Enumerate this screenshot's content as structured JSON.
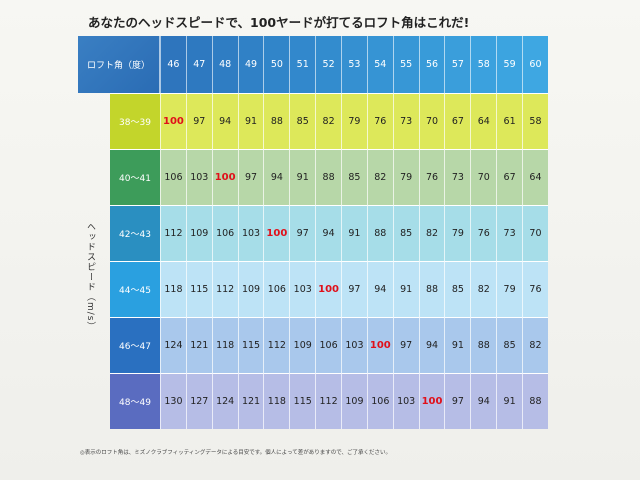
{
  "title": "あなたのヘッドスピードで、100ヤードが打てるロフト角はこれだ!",
  "header": {
    "corner_label": "ロフト角（度）",
    "lofts": [
      "46",
      "47",
      "48",
      "49",
      "50",
      "51",
      "52",
      "53",
      "54",
      "55",
      "56",
      "57",
      "58",
      "59",
      "60"
    ]
  },
  "axis_label": "ヘッドスピード（m/s）",
  "highlight_value": "100",
  "rows": [
    {
      "label": "38〜39",
      "values": [
        "100",
        "97",
        "94",
        "91",
        "88",
        "85",
        "82",
        "79",
        "76",
        "73",
        "70",
        "67",
        "64",
        "61",
        "58"
      ]
    },
    {
      "label": "40〜41",
      "values": [
        "106",
        "103",
        "100",
        "97",
        "94",
        "91",
        "88",
        "85",
        "82",
        "79",
        "76",
        "73",
        "70",
        "67",
        "64"
      ]
    },
    {
      "label": "42〜43",
      "values": [
        "112",
        "109",
        "106",
        "103",
        "100",
        "97",
        "94",
        "91",
        "88",
        "85",
        "82",
        "79",
        "76",
        "73",
        "70"
      ]
    },
    {
      "label": "44〜45",
      "values": [
        "118",
        "115",
        "112",
        "109",
        "106",
        "103",
        "100",
        "97",
        "94",
        "91",
        "88",
        "85",
        "82",
        "79",
        "76"
      ]
    },
    {
      "label": "46〜47",
      "values": [
        "124",
        "121",
        "118",
        "115",
        "112",
        "109",
        "106",
        "103",
        "100",
        "97",
        "94",
        "91",
        "88",
        "85",
        "82"
      ]
    },
    {
      "label": "48〜49",
      "values": [
        "130",
        "127",
        "124",
        "121",
        "118",
        "115",
        "112",
        "109",
        "106",
        "103",
        "100",
        "97",
        "94",
        "91",
        "88"
      ]
    }
  ],
  "colors": {
    "row_label_bg": [
      "#c3d52b",
      "#3d9c5a",
      "#2a8fc1",
      "#2aa0e0",
      "#2a70c0",
      "#5a6cc0"
    ],
    "row_cell_bg": [
      "#dde85a",
      "#b7d7a8",
      "#a6dde8",
      "#bde3f6",
      "#a9c8ec",
      "#b6bde6"
    ],
    "header_bg": [
      "#2e75bd",
      "#2e79c0",
      "#2f7dc3",
      "#3081c6",
      "#3185c9",
      "#3288cc",
      "#338cce",
      "#3590d1",
      "#3694d4",
      "#3797d6",
      "#389bd9",
      "#3a9edb",
      "#3ba1de",
      "#3ca4e0",
      "#3ea7e2"
    ]
  },
  "footnote": "◎表示のロフト角は、ミズノクラブフィッティングデータによる目安です。個人によって差がありますので、ご了承ください。"
}
